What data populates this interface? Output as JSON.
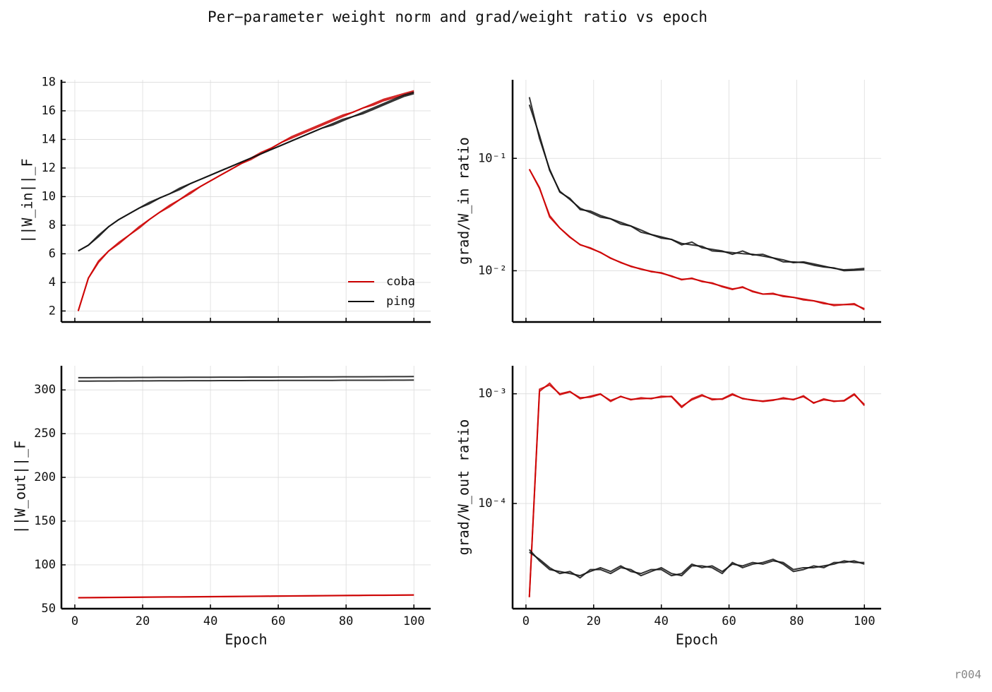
{
  "title": "Per−parameter weight norm and grad/weight ratio vs epoch",
  "footer": "r004",
  "chart_data": [
    {
      "type": "line",
      "ylabel": "||W_in||_F",
      "log_y": false,
      "grid": true,
      "legend": "lower right",
      "xtick_labels": false,
      "xlim": [
        -3.95,
        104.95
      ],
      "xticks": [
        0,
        20,
        40,
        60,
        80,
        100
      ],
      "ylim": [
        1.23,
        18.17
      ],
      "yticks": [
        2,
        4,
        6,
        8,
        10,
        12,
        14,
        16,
        18
      ],
      "x": [
        1,
        4,
        7,
        10,
        13,
        16,
        19,
        22,
        25,
        28,
        31,
        34,
        37,
        40,
        43,
        46,
        49,
        52,
        55,
        58,
        61,
        64,
        67,
        70,
        73,
        76,
        79,
        82,
        85,
        88,
        91,
        94,
        97,
        100
      ],
      "series": [
        {
          "name": "coba",
          "color": "#cc0000",
          "values": [
            2.0,
            4.3,
            5.5,
            6.2,
            6.8,
            7.3,
            7.9,
            8.4,
            8.9,
            9.4,
            9.8,
            10.3,
            10.7,
            11.1,
            11.5,
            11.9,
            12.3,
            12.7,
            13.1,
            13.4,
            13.8,
            14.2,
            14.5,
            14.8,
            15.1,
            15.4,
            15.7,
            15.9,
            16.2,
            16.5,
            16.8,
            17.0,
            17.2,
            17.4
          ]
        },
        {
          "name": "coba",
          "color": "#cc0000",
          "values": [
            2.0,
            4.3,
            5.4,
            6.2,
            6.7,
            7.3,
            7.8,
            8.4,
            8.9,
            9.3,
            9.8,
            10.2,
            10.7,
            11.1,
            11.5,
            11.9,
            12.3,
            12.6,
            13.0,
            13.4,
            13.8,
            14.1,
            14.4,
            14.7,
            15.0,
            15.3,
            15.6,
            15.9,
            16.2,
            16.4,
            16.7,
            16.9,
            17.1,
            17.3
          ]
        },
        {
          "name": "ping",
          "color": "#111111",
          "values": [
            6.2,
            6.6,
            7.3,
            7.9,
            8.4,
            8.8,
            9.2,
            9.5,
            9.9,
            10.2,
            10.5,
            10.9,
            11.2,
            11.5,
            11.8,
            12.1,
            12.4,
            12.7,
            13.0,
            13.3,
            13.6,
            13.9,
            14.2,
            14.5,
            14.8,
            15.0,
            15.3,
            15.6,
            15.8,
            16.1,
            16.4,
            16.7,
            17.0,
            17.2
          ]
        },
        {
          "name": "ping",
          "color": "#111111",
          "values": [
            6.2,
            6.6,
            7.2,
            7.9,
            8.4,
            8.8,
            9.2,
            9.6,
            9.9,
            10.2,
            10.6,
            10.9,
            11.2,
            11.5,
            11.8,
            12.1,
            12.4,
            12.7,
            13.0,
            13.3,
            13.6,
            13.9,
            14.2,
            14.5,
            14.8,
            15.1,
            15.4,
            15.6,
            15.9,
            16.2,
            16.5,
            16.8,
            17.1,
            17.3
          ]
        }
      ]
    },
    {
      "type": "line",
      "ylabel": "grad/W_in ratio",
      "log_y": true,
      "grid": true,
      "xtick_labels": false,
      "xlim": [
        -3.95,
        104.95
      ],
      "xticks": [
        0,
        20,
        40,
        60,
        80,
        100
      ],
      "ylim": [
        0.0035,
        0.5
      ],
      "yticks": [
        {
          "value": 0.01,
          "label": "10⁻²"
        },
        {
          "value": 0.1,
          "label": "10⁻¹"
        }
      ],
      "x": [
        1,
        4,
        7,
        10,
        13,
        16,
        19,
        22,
        25,
        28,
        31,
        34,
        37,
        40,
        43,
        46,
        49,
        52,
        55,
        58,
        61,
        64,
        67,
        70,
        73,
        76,
        79,
        82,
        85,
        88,
        91,
        94,
        97,
        100
      ],
      "series": [
        {
          "name": "coba",
          "color": "#cc0000",
          "values": [
            0.08,
            0.055,
            0.03,
            0.024,
            0.02,
            0.017,
            0.016,
            0.0145,
            0.013,
            0.0118,
            0.011,
            0.0103,
            0.0099,
            0.0095,
            0.009,
            0.0083,
            0.0086,
            0.008,
            0.0078,
            0.0072,
            0.0068,
            0.0072,
            0.0065,
            0.0062,
            0.0063,
            0.0059,
            0.0058,
            0.0056,
            0.0054,
            0.0052,
            0.0049,
            0.005,
            0.0051,
            0.0045
          ]
        },
        {
          "name": "coba",
          "color": "#cc0000",
          "values": [
            0.08,
            0.054,
            0.031,
            0.024,
            0.0198,
            0.0171,
            0.0158,
            0.0146,
            0.0129,
            0.0119,
            0.0109,
            0.0104,
            0.0098,
            0.0096,
            0.0089,
            0.0084,
            0.0085,
            0.0081,
            0.0077,
            0.0073,
            0.0069,
            0.0071,
            0.0066,
            0.0062,
            0.0062,
            0.006,
            0.0058,
            0.0055,
            0.0054,
            0.0051,
            0.005,
            0.005,
            0.005,
            0.0046
          ]
        },
        {
          "name": "ping",
          "color": "#111111",
          "values": [
            0.35,
            0.15,
            0.08,
            0.05,
            0.044,
            0.035,
            0.034,
            0.031,
            0.029,
            0.027,
            0.025,
            0.023,
            0.021,
            0.02,
            0.019,
            0.017,
            0.018,
            0.016,
            0.0155,
            0.015,
            0.014,
            0.015,
            0.0138,
            0.014,
            0.013,
            0.0125,
            0.0118,
            0.012,
            0.0115,
            0.011,
            0.0105,
            0.0102,
            0.0103,
            0.0105
          ]
        },
        {
          "name": "ping",
          "color": "#111111",
          "values": [
            0.3,
            0.16,
            0.078,
            0.051,
            0.043,
            0.036,
            0.033,
            0.03,
            0.029,
            0.026,
            0.025,
            0.022,
            0.021,
            0.0195,
            0.019,
            0.0175,
            0.017,
            0.0165,
            0.015,
            0.0148,
            0.0145,
            0.0142,
            0.014,
            0.0135,
            0.013,
            0.012,
            0.012,
            0.0118,
            0.0112,
            0.0108,
            0.0106,
            0.01,
            0.0101,
            0.0102
          ]
        }
      ]
    },
    {
      "type": "line",
      "ylabel": "||W_out||_F",
      "xlabel": "Epoch",
      "log_y": false,
      "grid": true,
      "xtick_labels": true,
      "xlim": [
        -3.95,
        104.95
      ],
      "xticks": [
        0,
        20,
        40,
        60,
        80,
        100
      ],
      "ylim": [
        49.9,
        327.6
      ],
      "yticks": [
        50,
        100,
        150,
        200,
        250,
        300
      ],
      "x": [
        1,
        4,
        7,
        10,
        13,
        16,
        19,
        22,
        25,
        28,
        31,
        34,
        37,
        40,
        43,
        46,
        49,
        52,
        55,
        58,
        61,
        64,
        67,
        70,
        73,
        76,
        79,
        82,
        85,
        88,
        91,
        94,
        97,
        100
      ],
      "series": [
        {
          "name": "coba",
          "color": "#cc0000",
          "values": [
            62.5,
            62.6,
            62.7,
            62.8,
            62.9,
            63.0,
            63.1,
            63.2,
            63.3,
            63.4,
            63.4,
            63.5,
            63.6,
            63.7,
            63.8,
            63.9,
            64.0,
            64.1,
            64.2,
            64.3,
            64.4,
            64.5,
            64.6,
            64.7,
            64.8,
            64.9,
            65.0,
            65.1,
            65.2,
            65.3,
            65.3,
            65.4,
            65.5,
            65.6
          ]
        },
        {
          "name": "coba",
          "color": "#cc0000",
          "values": [
            62.3,
            62.4,
            62.5,
            62.6,
            62.7,
            62.8,
            62.9,
            63.0,
            63.1,
            63.2,
            63.2,
            63.3,
            63.4,
            63.5,
            63.6,
            63.7,
            63.8,
            63.9,
            64.0,
            64.1,
            64.2,
            64.3,
            64.4,
            64.5,
            64.6,
            64.7,
            64.8,
            64.9,
            65.0,
            65.1,
            65.1,
            65.2,
            65.3,
            65.4
          ]
        },
        {
          "name": "ping",
          "color": "#111111",
          "values": [
            314.0,
            314.0,
            314.1,
            314.1,
            314.2,
            314.2,
            314.3,
            314.3,
            314.4,
            314.4,
            314.4,
            314.5,
            314.5,
            314.5,
            314.6,
            314.6,
            314.6,
            314.7,
            314.7,
            314.7,
            314.8,
            314.8,
            314.8,
            314.9,
            314.9,
            314.9,
            315.0,
            315.0,
            315.0,
            315.1,
            315.1,
            315.2,
            315.2,
            315.3
          ]
        },
        {
          "name": "ping",
          "color": "#111111",
          "values": [
            310.0,
            310.0,
            310.1,
            310.1,
            310.2,
            310.2,
            310.3,
            310.3,
            310.4,
            310.4,
            310.4,
            310.5,
            310.5,
            310.5,
            310.6,
            310.6,
            310.6,
            310.7,
            310.7,
            310.7,
            310.8,
            310.8,
            310.8,
            310.9,
            310.9,
            310.9,
            311.0,
            311.0,
            311.0,
            311.1,
            311.1,
            311.2,
            311.2,
            311.3
          ]
        }
      ]
    },
    {
      "type": "line",
      "ylabel": "grad/W_out ratio",
      "xlabel": "Epoch",
      "log_y": true,
      "grid": true,
      "xtick_labels": true,
      "xlim": [
        -3.95,
        104.95
      ],
      "xticks": [
        0,
        20,
        40,
        60,
        80,
        100
      ],
      "ylim": [
        1.1e-05,
        0.0018
      ],
      "yticks": [
        {
          "value": 0.0001,
          "label": "10⁻⁴"
        },
        {
          "value": 0.001,
          "label": "10⁻³"
        }
      ],
      "x": [
        1,
        4,
        7,
        10,
        13,
        16,
        19,
        22,
        25,
        28,
        31,
        34,
        37,
        40,
        43,
        46,
        49,
        52,
        55,
        58,
        61,
        64,
        67,
        70,
        73,
        76,
        79,
        82,
        85,
        88,
        91,
        94,
        97,
        100
      ],
      "series": [
        {
          "name": "coba",
          "color": "#cc0000",
          "values": [
            1.4e-05,
            0.0011,
            0.0012,
            0.001,
            0.00105,
            0.0009,
            0.00095,
            0.001,
            0.00085,
            0.00095,
            0.00088,
            0.00092,
            0.0009,
            0.00095,
            0.00094,
            0.00075,
            0.0009,
            0.00098,
            0.00088,
            0.0009,
            0.001,
            0.0009,
            0.00088,
            0.00085,
            0.00087,
            0.00092,
            0.00088,
            0.00096,
            0.00082,
            0.0009,
            0.00085,
            0.00087,
            0.001,
            0.00078
          ]
        },
        {
          "name": "coba",
          "color": "#cc0000",
          "values": [
            1.4e-05,
            0.00105,
            0.00125,
            0.00098,
            0.00104,
            0.00092,
            0.00093,
            0.00099,
            0.00087,
            0.00094,
            0.00089,
            0.0009,
            0.00091,
            0.00093,
            0.00095,
            0.00077,
            0.00088,
            0.00096,
            0.0009,
            0.00089,
            0.00098,
            0.00091,
            0.00087,
            0.00086,
            0.00088,
            0.0009,
            0.00089,
            0.00094,
            0.00083,
            0.00088,
            0.00086,
            0.00086,
            0.00098,
            0.0008
          ]
        },
        {
          "name": "ping",
          "color": "#111111",
          "values": [
            3.8e-05,
            3e-05,
            2.5e-05,
            2.4e-05,
            2.3e-05,
            2.2e-05,
            2.4e-05,
            2.6e-05,
            2.4e-05,
            2.7e-05,
            2.4e-05,
            2.3e-05,
            2.5e-05,
            2.5e-05,
            2.2e-05,
            2.3e-05,
            2.8e-05,
            2.6e-05,
            2.7e-05,
            2.4e-05,
            2.8e-05,
            2.7e-05,
            2.9e-05,
            2.8e-05,
            3e-05,
            2.9e-05,
            2.5e-05,
            2.6e-05,
            2.6e-05,
            2.7e-05,
            2.8e-05,
            3e-05,
            2.9e-05,
            2.9e-05
          ]
        },
        {
          "name": "ping",
          "color": "#111111",
          "values": [
            3.6e-05,
            3.1e-05,
            2.6e-05,
            2.3e-05,
            2.4e-05,
            2.1e-05,
            2.5e-05,
            2.5e-05,
            2.3e-05,
            2.6e-05,
            2.5e-05,
            2.2e-05,
            2.4e-05,
            2.6e-05,
            2.3e-05,
            2.2e-05,
            2.7e-05,
            2.7e-05,
            2.6e-05,
            2.3e-05,
            2.9e-05,
            2.6e-05,
            2.8e-05,
            2.9e-05,
            3.1e-05,
            2.8e-05,
            2.4e-05,
            2.5e-05,
            2.7e-05,
            2.6e-05,
            2.9e-05,
            2.9e-05,
            3e-05,
            2.8e-05
          ]
        }
      ]
    }
  ]
}
